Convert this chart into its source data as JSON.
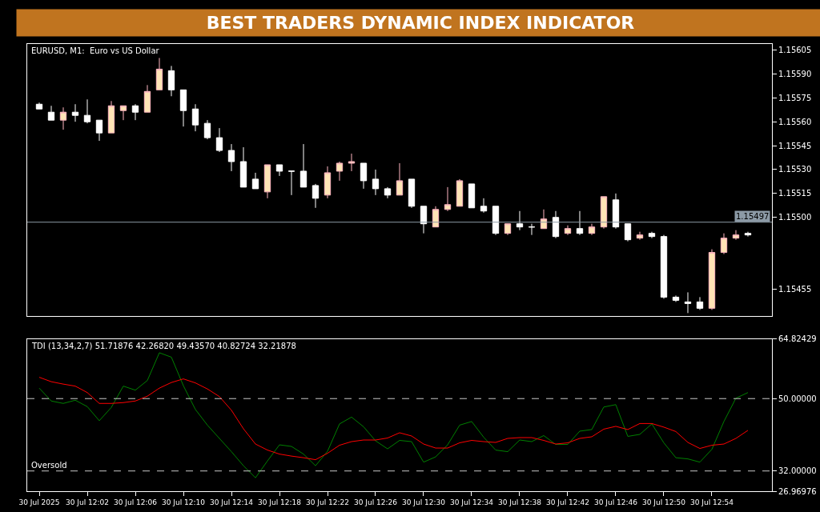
{
  "chart_data": [
    {
      "type": "candlestick",
      "title": "BEST TRADERS DYNAMIC INDEX INDICATOR",
      "subtitle": "EURUSD, M1:  Euro vs US Dollar",
      "x": [
        "2025-07-30T11:58",
        "2025-07-30T11:59",
        "2025-07-30T12:00",
        "2025-07-30T12:01",
        "2025-07-30T12:02",
        "2025-07-30T12:03",
        "2025-07-30T12:04",
        "2025-07-30T12:05",
        "2025-07-30T12:06",
        "2025-07-30T12:07",
        "2025-07-30T12:08",
        "2025-07-30T12:09",
        "2025-07-30T12:10",
        "2025-07-30T12:11",
        "2025-07-30T12:12",
        "2025-07-30T12:13",
        "2025-07-30T12:14",
        "2025-07-30T12:15",
        "2025-07-30T12:16",
        "2025-07-30T12:17",
        "2025-07-30T12:18",
        "2025-07-30T12:19",
        "2025-07-30T12:20",
        "2025-07-30T12:21",
        "2025-07-30T12:22",
        "2025-07-30T12:23",
        "2025-07-30T12:24",
        "2025-07-30T12:25",
        "2025-07-30T12:26",
        "2025-07-30T12:27",
        "2025-07-30T12:28",
        "2025-07-30T12:29",
        "2025-07-30T12:30",
        "2025-07-30T12:31",
        "2025-07-30T12:32",
        "2025-07-30T12:33",
        "2025-07-30T12:34",
        "2025-07-30T12:35",
        "2025-07-30T12:36",
        "2025-07-30T12:37",
        "2025-07-30T12:38",
        "2025-07-30T12:39",
        "2025-07-30T12:40",
        "2025-07-30T12:41",
        "2025-07-30T12:42",
        "2025-07-30T12:43",
        "2025-07-30T12:44",
        "2025-07-30T12:45",
        "2025-07-30T12:46",
        "2025-07-30T12:47",
        "2025-07-30T12:48",
        "2025-07-30T12:49",
        "2025-07-30T12:50",
        "2025-07-30T12:51",
        "2025-07-30T12:52",
        "2025-07-30T12:53",
        "2025-07-30T12:54",
        "2025-07-30T12:55",
        "2025-07-30T12:56",
        "2025-07-30T12:57"
      ],
      "ohlc": [
        [
          1.15571,
          1.15572,
          1.15568,
          1.15568
        ],
        [
          1.15566,
          1.1557,
          1.15561,
          1.15561
        ],
        [
          1.15561,
          1.15569,
          1.15555,
          1.15566
        ],
        [
          1.15566,
          1.15571,
          1.1556,
          1.15564
        ],
        [
          1.15564,
          1.15574,
          1.15559,
          1.1556
        ],
        [
          1.15561,
          1.15561,
          1.15548,
          1.15553
        ],
        [
          1.15553,
          1.15573,
          1.15553,
          1.1557
        ],
        [
          1.15567,
          1.1557,
          1.15561,
          1.1557
        ],
        [
          1.1557,
          1.15571,
          1.15561,
          1.15566
        ],
        [
          1.15566,
          1.15583,
          1.15566,
          1.15579
        ],
        [
          1.1558,
          1.156,
          1.1558,
          1.15593
        ],
        [
          1.15592,
          1.15595,
          1.15576,
          1.1558
        ],
        [
          1.1558,
          1.1558,
          1.15557,
          1.15567
        ],
        [
          1.15568,
          1.15571,
          1.15554,
          1.15558
        ],
        [
          1.15559,
          1.15561,
          1.15549,
          1.1555
        ],
        [
          1.1555,
          1.15556,
          1.15541,
          1.15542
        ],
        [
          1.15542,
          1.15546,
          1.15529,
          1.15535
        ],
        [
          1.15535,
          1.15544,
          1.15519,
          1.15519
        ],
        [
          1.15524,
          1.15528,
          1.15518,
          1.15518
        ],
        [
          1.15516,
          1.15533,
          1.15512,
          1.15533
        ],
        [
          1.15533,
          1.15533,
          1.15526,
          1.15529
        ],
        [
          1.15529,
          1.15529,
          1.15514,
          1.15529
        ],
        [
          1.15529,
          1.15546,
          1.15519,
          1.15519
        ],
        [
          1.1552,
          1.15521,
          1.15506,
          1.15512
        ],
        [
          1.15514,
          1.15532,
          1.15512,
          1.15528
        ],
        [
          1.15529,
          1.15535,
          1.15523,
          1.15534
        ],
        [
          1.15534,
          1.1554,
          1.15529,
          1.15535
        ],
        [
          1.15534,
          1.15534,
          1.15518,
          1.15523
        ],
        [
          1.15524,
          1.1553,
          1.15514,
          1.15518
        ],
        [
          1.15518,
          1.15519,
          1.15512,
          1.15514
        ],
        [
          1.15514,
          1.15534,
          1.15514,
          1.15523
        ],
        [
          1.15524,
          1.15524,
          1.15506,
          1.15507
        ],
        [
          1.15507,
          1.15507,
          1.1549,
          1.15496
        ],
        [
          1.15494,
          1.15507,
          1.15494,
          1.15505
        ],
        [
          1.15505,
          1.15519,
          1.15504,
          1.15508
        ],
        [
          1.15507,
          1.15524,
          1.15507,
          1.15523
        ],
        [
          1.15521,
          1.15521,
          1.15506,
          1.15506
        ],
        [
          1.15507,
          1.15512,
          1.15503,
          1.15504
        ],
        [
          1.15507,
          1.15507,
          1.15489,
          1.1549
        ],
        [
          1.1549,
          1.15496,
          1.15489,
          1.15496
        ],
        [
          1.15496,
          1.15504,
          1.15492,
          1.15494
        ],
        [
          1.15494,
          1.15496,
          1.15489,
          1.15494
        ],
        [
          1.15493,
          1.15505,
          1.15493,
          1.15499
        ],
        [
          1.155,
          1.15504,
          1.15487,
          1.15488
        ],
        [
          1.1549,
          1.15495,
          1.15489,
          1.15493
        ],
        [
          1.15493,
          1.15504,
          1.15489,
          1.1549
        ],
        [
          1.1549,
          1.15496,
          1.15489,
          1.15494
        ],
        [
          1.15494,
          1.15513,
          1.15493,
          1.15513
        ],
        [
          1.15511,
          1.15515,
          1.15493,
          1.15494
        ],
        [
          1.15496,
          1.15496,
          1.15485,
          1.15486
        ],
        [
          1.15487,
          1.15491,
          1.15486,
          1.15489
        ],
        [
          1.1549,
          1.15491,
          1.15487,
          1.15488
        ],
        [
          1.15488,
          1.15489,
          1.15449,
          1.1545
        ],
        [
          1.1545,
          1.15451,
          1.15447,
          1.15448
        ],
        [
          1.15447,
          1.15453,
          1.1544,
          1.15446
        ],
        [
          1.15447,
          1.1545,
          1.15442,
          1.15443
        ],
        [
          1.15443,
          1.1548,
          1.15442,
          1.15478
        ],
        [
          1.15478,
          1.1549,
          1.15477,
          1.15487
        ],
        [
          1.15487,
          1.15492,
          1.15486,
          1.15489
        ],
        [
          1.1549,
          1.15491,
          1.15488,
          1.15489
        ]
      ],
      "xlim": [
        "2025-07-30T11:57",
        "2025-07-30T12:59"
      ],
      "ylim": [
        1.15438,
        1.15609
      ],
      "yticks": [
        {
          "value": 1.15605,
          "label": "1.15605"
        },
        {
          "value": 1.1559,
          "label": "1.15590"
        },
        {
          "value": 1.15575,
          "label": "1.15575"
        },
        {
          "value": 1.1556,
          "label": "1.15560"
        },
        {
          "value": 1.15545,
          "label": "1.15545"
        },
        {
          "value": 1.1553,
          "label": "1.15530"
        },
        {
          "value": 1.15515,
          "label": "1.15515"
        },
        {
          "value": 1.155,
          "label": "1.15500"
        },
        {
          "value": 1.15455,
          "label": "1.15455"
        }
      ],
      "ref_lines": [
        {
          "axis": "y",
          "value": 1.15497,
          "label": "1.15497",
          "color": "#8c9aa6",
          "line_style": "solid"
        }
      ],
      "tick_labels": "y"
    },
    {
      "type": "line",
      "title": "TDI (13,34,2,7) 51.71876 42.26820 49.43570 40.82724 32.21878",
      "x": [
        "2025-07-30T11:58",
        "2025-07-30T11:59",
        "2025-07-30T12:00",
        "2025-07-30T12:01",
        "2025-07-30T12:02",
        "2025-07-30T12:03",
        "2025-07-30T12:04",
        "2025-07-30T12:05",
        "2025-07-30T12:06",
        "2025-07-30T12:07",
        "2025-07-30T12:08",
        "2025-07-30T12:09",
        "2025-07-30T12:10",
        "2025-07-30T12:11",
        "2025-07-30T12:12",
        "2025-07-30T12:13",
        "2025-07-30T12:14",
        "2025-07-30T12:15",
        "2025-07-30T12:16",
        "2025-07-30T12:17",
        "2025-07-30T12:18",
        "2025-07-30T12:19",
        "2025-07-30T12:20",
        "2025-07-30T12:21",
        "2025-07-30T12:22",
        "2025-07-30T12:23",
        "2025-07-30T12:24",
        "2025-07-30T12:25",
        "2025-07-30T12:26",
        "2025-07-30T12:27",
        "2025-07-30T12:28",
        "2025-07-30T12:29",
        "2025-07-30T12:30",
        "2025-07-30T12:31",
        "2025-07-30T12:32",
        "2025-07-30T12:33",
        "2025-07-30T12:34",
        "2025-07-30T12:35",
        "2025-07-30T12:36",
        "2025-07-30T12:37",
        "2025-07-30T12:38",
        "2025-07-30T12:39",
        "2025-07-30T12:40",
        "2025-07-30T12:41",
        "2025-07-30T12:42",
        "2025-07-30T12:43",
        "2025-07-30T12:44",
        "2025-07-30T12:45",
        "2025-07-30T12:46",
        "2025-07-30T12:47",
        "2025-07-30T12:48",
        "2025-07-30T12:49",
        "2025-07-30T12:50",
        "2025-07-30T12:51",
        "2025-07-30T12:52",
        "2025-07-30T12:53",
        "2025-07-30T12:54",
        "2025-07-30T12:55",
        "2025-07-30T12:56",
        "2025-07-30T12:57"
      ],
      "series": [
        {
          "color": "#008000",
          "values": [
            52.6,
            49.4,
            48.8,
            49.6,
            48.0,
            44.5,
            47.8,
            53.1,
            52.1,
            54.5,
            61.4,
            60.3,
            53.2,
            47.3,
            43.4,
            40.1,
            36.8,
            33.3,
            30.3,
            34.5,
            38.5,
            38.1,
            36.2,
            33.3,
            36.9,
            43.7,
            45.4,
            43.0,
            39.5,
            37.5,
            39.6,
            39.3,
            34.2,
            35.5,
            38.5,
            43.4,
            44.3,
            40.4,
            37.2,
            36.8,
            39.7,
            39.3,
            40.8,
            38.6,
            38.6,
            41.9,
            42.3,
            47.9,
            48.5,
            40.6,
            41.1,
            43.7,
            39.0,
            35.3,
            35.0,
            34.2,
            37.4,
            44.3,
            50.1,
            51.5
          ]
        },
        {
          "color": "#ff0000",
          "values": [
            55.3,
            54.2,
            53.6,
            53.1,
            51.5,
            48.8,
            48.8,
            49.0,
            49.4,
            50.6,
            52.6,
            54.0,
            54.9,
            53.9,
            52.4,
            50.5,
            47.1,
            42.5,
            38.7,
            37.2,
            36.2,
            35.7,
            35.3,
            34.8,
            36.4,
            38.4,
            39.3,
            39.7,
            39.7,
            40.2,
            41.5,
            40.7,
            38.7,
            37.7,
            37.7,
            39.0,
            39.6,
            39.3,
            39.1,
            40.1,
            40.3,
            40.3,
            39.6,
            38.7,
            39.0,
            40.1,
            40.5,
            42.4,
            43.1,
            42.3,
            43.8,
            43.8,
            42.9,
            41.8,
            39.1,
            37.6,
            38.4,
            38.7,
            40.1,
            42.1
          ]
        }
      ],
      "xlim": [
        "2025-07-30T11:57",
        "2025-07-30T12:59"
      ],
      "xticks": [
        {
          "value": "2025-07-30T11:58",
          "label": "30 Jul 2025"
        },
        {
          "value": "2025-07-30T12:02",
          "label": "30 Jul 12:02"
        },
        {
          "value": "2025-07-30T12:06",
          "label": "30 Jul 12:06"
        },
        {
          "value": "2025-07-30T12:10",
          "label": "30 Jul 12:10"
        },
        {
          "value": "2025-07-30T12:14",
          "label": "30 Jul 12:14"
        },
        {
          "value": "2025-07-30T12:18",
          "label": "30 Jul 12:18"
        },
        {
          "value": "2025-07-30T12:22",
          "label": "30 Jul 12:22"
        },
        {
          "value": "2025-07-30T12:26",
          "label": "30 Jul 12:26"
        },
        {
          "value": "2025-07-30T12:30",
          "label": "30 Jul 12:30"
        },
        {
          "value": "2025-07-30T12:34",
          "label": "30 Jul 12:34"
        },
        {
          "value": "2025-07-30T12:38",
          "label": "30 Jul 12:38"
        },
        {
          "value": "2025-07-30T12:42",
          "label": "30 Jul 12:42"
        },
        {
          "value": "2025-07-30T12:46",
          "label": "30 Jul 12:46"
        },
        {
          "value": "2025-07-30T12:50",
          "label": "30 Jul 12:50"
        },
        {
          "value": "2025-07-30T12:54",
          "label": "30 Jul 12:54"
        }
      ],
      "ylim": [
        26.96976,
        64.82429
      ],
      "yticks": [
        {
          "value": 64.82429,
          "label": "64.82429"
        },
        {
          "value": 50,
          "label": "50.00000"
        },
        {
          "value": 32,
          "label": "32.00000"
        },
        {
          "value": 26.96976,
          "label": "26.96976"
        }
      ],
      "ref_lines": [
        {
          "axis": "y",
          "value": 50,
          "line_style": "dashed",
          "color": "#c8c8c8"
        },
        {
          "axis": "y",
          "value": 32,
          "label": "Oversold",
          "line_style": "dashed",
          "color": "#c8c8c8"
        }
      ],
      "marker": "none",
      "line_style": "solid"
    }
  ]
}
